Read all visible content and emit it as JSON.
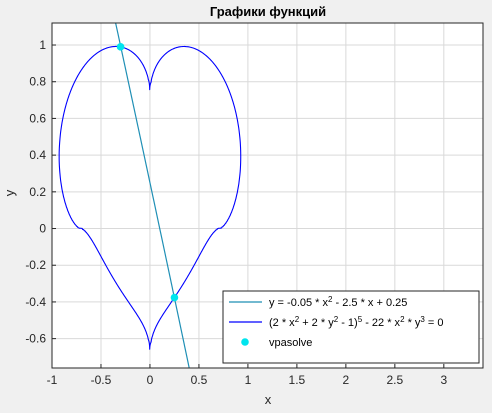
{
  "chart_data": {
    "type": "line",
    "title": "Графики функций",
    "xlabel": "x",
    "ylabel": "y",
    "xlim": [
      -1,
      3.4
    ],
    "ylim": [
      -0.76,
      1.12
    ],
    "grid": true,
    "legend_position": "bottom-right",
    "x_ticks": [
      -1,
      -0.5,
      0,
      0.5,
      1,
      1.5,
      2,
      2.5,
      3
    ],
    "x_tick_labels": [
      "-1",
      "-0.5",
      "0",
      "0.5",
      "1",
      "1.5",
      "2",
      "2.5",
      "3"
    ],
    "y_ticks": [
      -0.6,
      -0.4,
      -0.2,
      0,
      0.2,
      0.4,
      0.6,
      0.8,
      1
    ],
    "y_tick_labels": [
      "-0.6",
      "-0.4",
      "-0.2",
      "0",
      "0.2",
      "0.4",
      "0.6",
      "0.8",
      "1"
    ],
    "series": [
      {
        "name": "y = -0.05 * x^2 - 2.5 * x + 0.25",
        "legend_parts": [
          "y = -0.05 * x",
          "2",
          " - 2.5 * x + 0.25"
        ],
        "kind": "line",
        "color": "#1f8fb5",
        "equation": "y = -0.05 * x^2 - 2.5 * x + 0.25",
        "x_range": [
          -0.5,
          0.42
        ]
      },
      {
        "name": "(2 * x^2 + 2 * y^2 - 1)^5 - 22 * x^2 * y^3 = 0",
        "legend_parts": [
          "(2 * x",
          "2",
          " + 2 * y",
          "2",
          " - 1)",
          "5",
          " - 22 * x",
          "2",
          " * y",
          "3",
          " = 0"
        ],
        "kind": "implicit",
        "color": "#0000ff",
        "equation": "(2 * x^2 + 2 * y^2 - 1)^5 - 22 * x^2 * y^3 = 0"
      },
      {
        "name": "vpasolve",
        "kind": "points",
        "color": "#00e5ee",
        "points": [
          {
            "x": -0.3,
            "y": 0.99
          },
          {
            "x": 0.25,
            "y": -0.376
          }
        ]
      }
    ]
  }
}
